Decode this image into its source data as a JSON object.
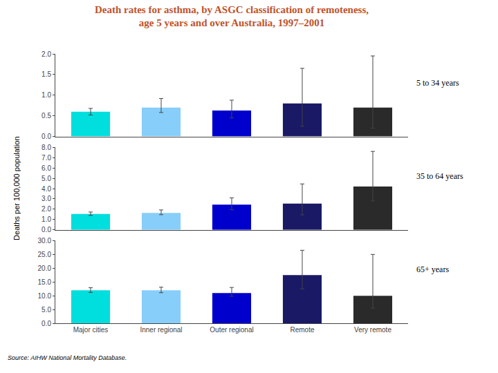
{
  "chart_data": [
    {
      "type": "bar",
      "title": "Death rates for asthma, by ASGC classification of remoteness,\nage 5 years and over Australia, 1997–2001",
      "subtitle": "5 to 34 years",
      "categories": [
        "Major cities",
        "Inner regional",
        "Outer regional",
        "Remote",
        "Very remote"
      ],
      "colors": [
        "#00DEDE",
        "#87CEFA",
        "#0000CC",
        "#191966",
        "#2A2A2A"
      ],
      "values": [
        0.6,
        0.7,
        0.63,
        0.8,
        0.7
      ],
      "error_low": [
        0.08,
        0.12,
        0.18,
        0.55,
        0.5
      ],
      "error_high": [
        0.08,
        0.22,
        0.25,
        0.85,
        1.25
      ],
      "ylim": [
        0,
        2.0
      ],
      "yticks": [
        {
          "value": 0.0,
          "label": "0.0"
        },
        0.5,
        {
          "value": 1.0,
          "label": "1.0"
        },
        1.5,
        {
          "value": 2.0,
          "label": "2.0"
        }
      ],
      "grid": false,
      "tick_labels": "y"
    },
    {
      "type": "bar",
      "subtitle": "35 to 64 years",
      "ylabel": "Deaths per 100,000 population",
      "categories": [
        "Major cities",
        "Inner regional",
        "Outer regional",
        "Remote",
        "Very remote"
      ],
      "colors": [
        "#00DEDE",
        "#87CEFA",
        "#0000CC",
        "#191966",
        "#2A2A2A"
      ],
      "values": [
        1.55,
        1.65,
        2.45,
        2.55,
        4.2
      ],
      "error_low": [
        0.15,
        0.18,
        0.5,
        1.1,
        1.4
      ],
      "error_high": [
        0.18,
        0.28,
        0.65,
        1.9,
        3.4
      ],
      "ylim": [
        0,
        8.0
      ],
      "yticks": [
        {
          "value": 0.0,
          "label": "0.0"
        },
        {
          "value": 1.0,
          "label": "1.0"
        },
        {
          "value": 2.0,
          "label": "2.0"
        },
        {
          "value": 3.0,
          "label": "3.0"
        },
        {
          "value": 4.0,
          "label": "4.0"
        },
        {
          "value": 5.0,
          "label": "5.0"
        },
        {
          "value": 6.0,
          "label": "6.0"
        },
        {
          "value": 7.0,
          "label": "7.0"
        },
        {
          "value": 8.0,
          "label": "8.0"
        }
      ],
      "grid": false,
      "tick_labels": "y"
    },
    {
      "type": "bar",
      "subtitle": "65+ years",
      "annotations": [
        "Source: AIHW National Mortality Database."
      ],
      "categories": [
        "Major cities",
        "Inner regional",
        "Outer regional",
        "Remote",
        "Very remote"
      ],
      "colors": [
        "#00DEDE",
        "#87CEFA",
        "#0000CC",
        "#191966",
        "#2A2A2A"
      ],
      "values": [
        12.0,
        12.0,
        11.0,
        17.5,
        10.0
      ],
      "error_low": [
        0.8,
        0.9,
        1.2,
        5.0,
        4.5
      ],
      "error_high": [
        0.9,
        1.1,
        2.0,
        9.0,
        15.0
      ],
      "ylim": [
        0,
        30.0
      ],
      "yticks": [
        {
          "value": 0.0,
          "label": "0.0"
        },
        {
          "value": 5.0,
          "label": "5.0"
        },
        {
          "value": 10.0,
          "label": "10.0"
        },
        {
          "value": 15.0,
          "label": "15.0"
        },
        {
          "value": 20.0,
          "label": "20.0"
        },
        {
          "value": 25.0,
          "label": "25.0"
        },
        {
          "value": 30.0,
          "label": "30.0"
        }
      ],
      "grid": false
    }
  ]
}
